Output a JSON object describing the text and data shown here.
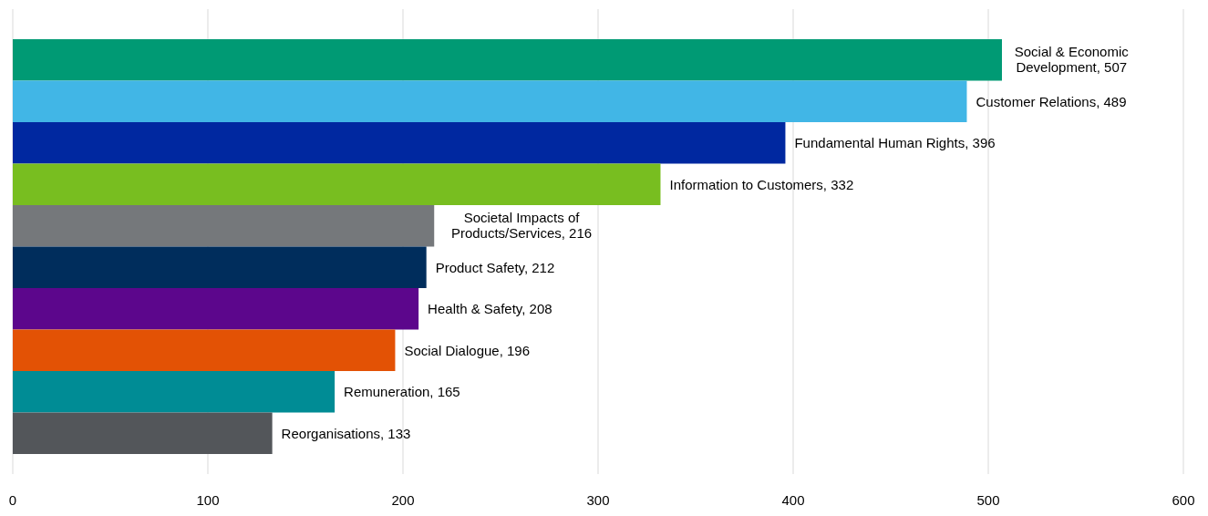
{
  "chart_data": {
    "type": "bar",
    "orientation": "horizontal",
    "categories": [
      null,
      null,
      null,
      null,
      null,
      null,
      null,
      null,
      null,
      null
    ],
    "values": [
      507,
      489,
      396,
      332,
      216,
      212,
      208,
      196,
      165,
      133
    ],
    "value_labels": [
      "Social & Economic Development, 507",
      "Customer Relations, 489",
      "Fundamental Human Rights, 396",
      "Information to Customers, 332",
      "Societal Impacts of Products/Services, 216",
      "Product Safety, 212",
      "Health & Safety, 208",
      "Social Dialogue, 196",
      "Remuneration, 165",
      "Reorganisations, 133"
    ],
    "colors": [
      "#009a74",
      "#41b6e6",
      "#0028a0",
      "#78be20",
      "#75787b",
      "#002d5c",
      "#5c068c",
      "#e35205",
      "#008c95",
      "#53565a"
    ],
    "xlim": [
      0,
      600
    ],
    "xticks": [
      0,
      100,
      200,
      300,
      400,
      500,
      600
    ],
    "grid": "x",
    "tick_labels": "x"
  }
}
